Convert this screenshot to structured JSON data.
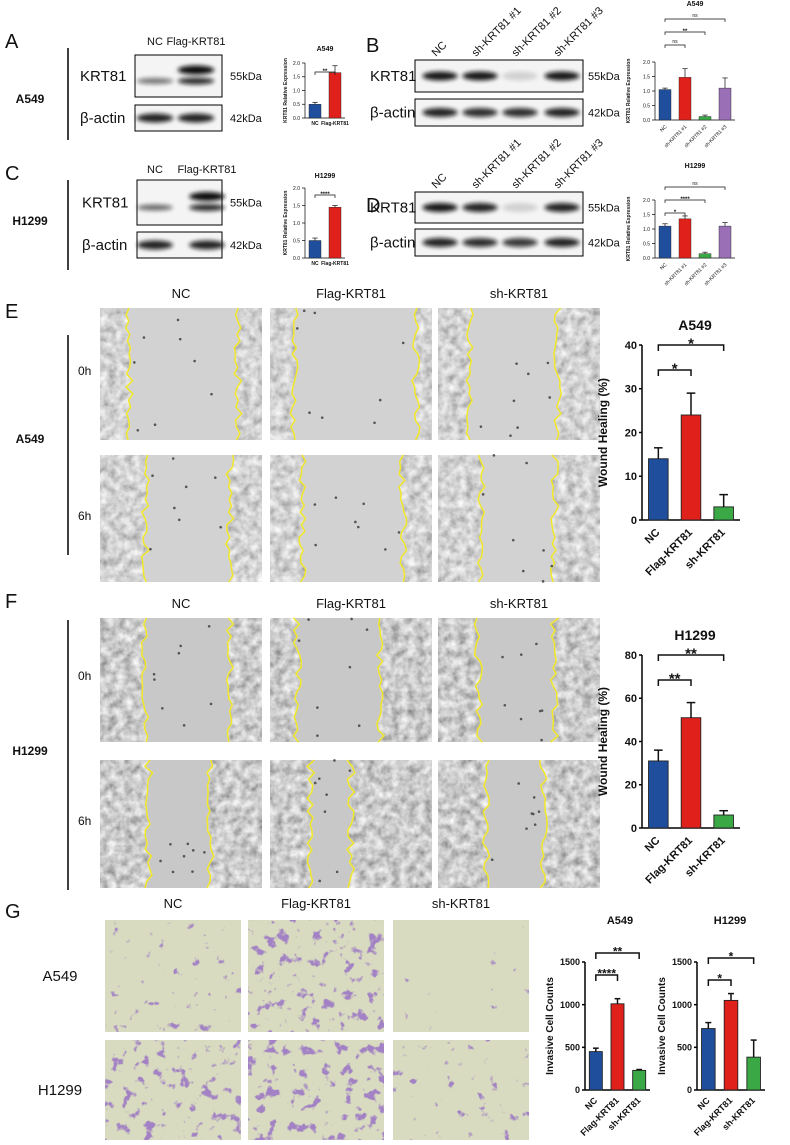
{
  "panels": [
    {
      "letter": "A",
      "cell_line": "A549",
      "lanes": [
        "NC",
        "Flag-KRT81"
      ],
      "blots": [
        {
          "protein": "KRT81",
          "size": "55kDa"
        },
        {
          "protein": "β-actin",
          "size": "42kDa"
        }
      ]
    },
    {
      "letter": "B",
      "lanes": [
        "NC",
        "sh-KRT81 #1",
        "sh-KRT81 #2",
        "sh-KRT81 #3"
      ],
      "blots": [
        {
          "protein": "KRT81",
          "size": "55kDa"
        },
        {
          "protein": "β-actin",
          "size": "42kDa"
        }
      ]
    },
    {
      "letter": "C",
      "cell_line": "H1299",
      "lanes": [
        "NC",
        "Flag-KRT81"
      ],
      "blots": [
        {
          "protein": "KRT81",
          "size": "55kDa"
        },
        {
          "protein": "β-actin",
          "size": "42kDa"
        }
      ]
    },
    {
      "letter": "D",
      "lanes": [
        "NC",
        "sh-KRT81 #1",
        "sh-KRT81 #2",
        "sh-KRT81 #3"
      ],
      "blots": [
        {
          "protein": "KRT81",
          "size": "55kDa"
        },
        {
          "protein": "β-actin",
          "size": "42kDa"
        }
      ]
    },
    {
      "letter": "E",
      "cell_line": "A549",
      "columns": [
        "NC",
        "Flag-KRT81",
        "sh-KRT81"
      ],
      "timepoints": [
        "0h",
        "6h"
      ]
    },
    {
      "letter": "F",
      "cell_line": "H1299",
      "columns": [
        "NC",
        "Flag-KRT81",
        "sh-KRT81"
      ],
      "timepoints": [
        "0h",
        "6h"
      ]
    },
    {
      "letter": "G",
      "columns": [
        "NC",
        "Flag-KRT81",
        "sh-KRT81"
      ],
      "cell_lines": [
        "A549",
        "H1299"
      ]
    }
  ],
  "chart_data": [
    {
      "type": "bar",
      "title": "A549",
      "ylabel": "KRT81 Relative Expression",
      "categories": [
        "NC",
        "Flag-KRT81"
      ],
      "values": [
        0.5,
        1.65
      ],
      "errors": [
        0.07,
        0.25
      ],
      "colors": [
        "#1f4e9c",
        "#e0201b"
      ],
      "ylim": [
        0,
        2
      ],
      "yticks": [
        {
          "value": 0,
          "label": "0.0"
        },
        0.5,
        {
          "value": 1,
          "label": "1.0"
        },
        1.5,
        {
          "value": 2,
          "label": "2.0"
        }
      ],
      "comparisons": [
        {
          "label": "**",
          "pair": [
            "NC",
            "Flag-KRT81"
          ]
        }
      ]
    },
    {
      "type": "bar",
      "title": "A549",
      "ylabel": "KRT81 Relative Expression",
      "categories": [
        "NC",
        "sh-KRT81 #1",
        "sh-KRT81 #2",
        "sh-KRT81 #3"
      ],
      "values": [
        1.05,
        1.47,
        0.12,
        1.1
      ],
      "errors": [
        0.05,
        0.3,
        0.05,
        0.35
      ],
      "colors": [
        "#1f4e9c",
        "#e0201b",
        "#3aa845",
        "#9a6fb5"
      ],
      "ylim": [
        0,
        2
      ],
      "yticks": [
        {
          "value": 0,
          "label": "0.0"
        },
        0.5,
        {
          "value": 1,
          "label": "1.0"
        },
        1.5,
        {
          "value": 2,
          "label": "2.0"
        }
      ],
      "comparisons": [
        {
          "label": "ns",
          "pair": [
            "NC",
            "sh-KRT81 #1"
          ]
        },
        {
          "label": "**",
          "pair": [
            "NC",
            "sh-KRT81 #2"
          ]
        },
        {
          "label": "ns",
          "pair": [
            "NC",
            "sh-KRT81 #3"
          ]
        }
      ]
    },
    {
      "type": "bar",
      "title": "H1299",
      "ylabel": "KRT81 Relative Expression",
      "categories": [
        "NC",
        "Flag-KRT81"
      ],
      "values": [
        0.5,
        1.45
      ],
      "errors": [
        0.07,
        0.05
      ],
      "colors": [
        "#1f4e9c",
        "#e0201b"
      ],
      "ylim": [
        0,
        2
      ],
      "yticks": [
        {
          "value": 0,
          "label": "0.0"
        },
        0.5,
        {
          "value": 1,
          "label": "1.0"
        },
        1.5,
        {
          "value": 2,
          "label": "2.0"
        }
      ],
      "comparisons": [
        {
          "label": "****",
          "pair": [
            "NC",
            "Flag-KRT81"
          ]
        }
      ]
    },
    {
      "type": "bar",
      "title": "H1299",
      "ylabel": "KRT81 Relative Expression",
      "categories": [
        "NC",
        "sh-KRT81 #1",
        "sh-KRT81 #2",
        "sh-KRT81 #3"
      ],
      "values": [
        1.1,
        1.35,
        0.15,
        1.1
      ],
      "errors": [
        0.08,
        0.1,
        0.05,
        0.12
      ],
      "colors": [
        "#1f4e9c",
        "#e0201b",
        "#3aa845",
        "#9a6fb5"
      ],
      "ylim": [
        0,
        2
      ],
      "yticks": [
        {
          "value": 0,
          "label": "0.0"
        },
        0.5,
        {
          "value": 1,
          "label": "1.0"
        },
        1.5,
        {
          "value": 2,
          "label": "2.0"
        }
      ],
      "comparisons": [
        {
          "label": "*",
          "pair": [
            "NC",
            "sh-KRT81 #1"
          ]
        },
        {
          "label": "****",
          "pair": [
            "NC",
            "sh-KRT81 #2"
          ]
        },
        {
          "label": "ns",
          "pair": [
            "NC",
            "sh-KRT81 #3"
          ]
        }
      ]
    },
    {
      "type": "bar",
      "title": "A549",
      "ylabel": "Wound Healing (%)",
      "categories": [
        "NC",
        "Flag-KRT81",
        "sh-KRT81"
      ],
      "values": [
        14,
        24,
        3
      ],
      "errors": [
        2.5,
        5,
        2.8
      ],
      "colors": [
        "#1f4e9c",
        "#e0201b",
        "#3aa845"
      ],
      "ylim": [
        0,
        40
      ],
      "yticks": [
        0,
        10,
        20,
        30,
        40
      ],
      "comparisons": [
        {
          "label": "*",
          "pair": [
            "NC",
            "Flag-KRT81"
          ]
        },
        {
          "label": "*",
          "pair": [
            "NC",
            "sh-KRT81"
          ]
        }
      ]
    },
    {
      "type": "bar",
      "title": "H1299",
      "ylabel": "Wound Healing (%)",
      "categories": [
        "NC",
        "Flag-KRT81",
        "sh-KRT81"
      ],
      "values": [
        31,
        51,
        6
      ],
      "errors": [
        5,
        7,
        2
      ],
      "colors": [
        "#1f4e9c",
        "#e0201b",
        "#3aa845"
      ],
      "ylim": [
        0,
        80
      ],
      "yticks": [
        0,
        20,
        40,
        60,
        80
      ],
      "comparisons": [
        {
          "label": "**",
          "pair": [
            "NC",
            "Flag-KRT81"
          ]
        },
        {
          "label": "**",
          "pair": [
            "NC",
            "sh-KRT81"
          ]
        }
      ]
    },
    {
      "type": "bar",
      "title": "A549",
      "ylabel": "Invasive Cell Counts",
      "categories": [
        "NC",
        "Flag-KRT81",
        "sh-KRT81"
      ],
      "values": [
        450,
        1010,
        230
      ],
      "errors": [
        40,
        60,
        10
      ],
      "colors": [
        "#1f4e9c",
        "#e0201b",
        "#3aa845"
      ],
      "ylim": [
        0,
        1500
      ],
      "yticks": [
        0,
        500,
        1000,
        1500
      ],
      "comparisons": [
        {
          "label": "****",
          "pair": [
            "NC",
            "Flag-KRT81"
          ]
        },
        {
          "label": "**",
          "pair": [
            "NC",
            "sh-KRT81"
          ]
        }
      ]
    },
    {
      "type": "bar",
      "title": "H1299",
      "ylabel": "Invasive Cell Counts",
      "categories": [
        "NC",
        "Flag-KRT81",
        "sh-KRT81"
      ],
      "values": [
        720,
        1050,
        385
      ],
      "errors": [
        70,
        80,
        200
      ],
      "colors": [
        "#1f4e9c",
        "#e0201b",
        "#3aa845"
      ],
      "ylim": [
        0,
        1500
      ],
      "yticks": [
        0,
        500,
        1000,
        1500
      ],
      "comparisons": [
        {
          "label": "*",
          "pair": [
            "NC",
            "Flag-KRT81"
          ]
        },
        {
          "label": "*",
          "pair": [
            "NC",
            "sh-KRT81"
          ]
        }
      ]
    }
  ]
}
